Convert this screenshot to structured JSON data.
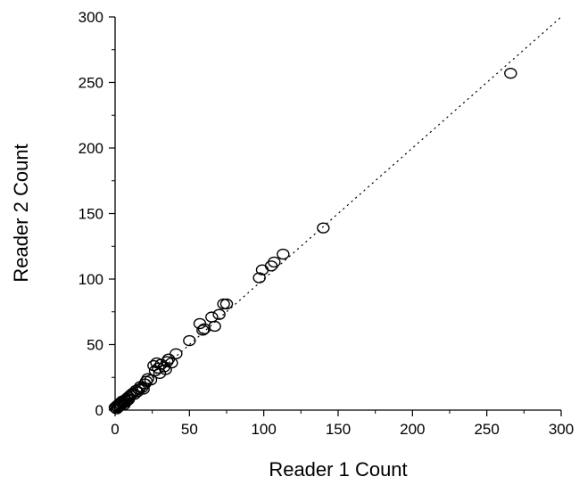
{
  "chart_data": {
    "type": "scatter",
    "xlabel": "Reader 1 Count",
    "ylabel": "Reader 2 Count",
    "xlim": [
      0,
      300
    ],
    "ylim": [
      0,
      300
    ],
    "major_ticks": [
      0,
      50,
      100,
      150,
      200,
      250,
      300
    ],
    "minor_ticks": [
      25,
      75,
      125,
      175,
      225,
      275
    ],
    "grid": false,
    "legend": "none",
    "reference_line": {
      "style": "dotted",
      "from": [
        0,
        0
      ],
      "to": [
        300,
        300
      ]
    },
    "marker": "open-circle",
    "series": [
      {
        "x": [
          0,
          1,
          1,
          2,
          2,
          3,
          3,
          4,
          4,
          5,
          5,
          6,
          6,
          7,
          7,
          8,
          8,
          9,
          9,
          10,
          11,
          12,
          13,
          14,
          15,
          16,
          17,
          18,
          19,
          20,
          21,
          22,
          24,
          26,
          27,
          28,
          29,
          30,
          31,
          33,
          34,
          35,
          36,
          38,
          41,
          50,
          57,
          59,
          60,
          65,
          67,
          70,
          73,
          75,
          97,
          99,
          105,
          107,
          113,
          140,
          266
        ],
        "y": [
          2,
          3,
          1,
          4,
          2,
          5,
          3,
          4,
          6,
          5,
          7,
          6,
          4,
          8,
          6,
          7,
          9,
          8,
          10,
          11,
          12,
          13,
          12,
          15,
          14,
          16,
          18,
          17,
          16,
          20,
          22,
          24,
          23,
          34,
          30,
          36,
          32,
          28,
          35,
          33,
          31,
          37,
          39,
          36,
          43,
          53,
          66,
          61,
          62,
          71,
          64,
          73,
          81,
          81,
          101,
          107,
          110,
          113,
          119,
          139,
          257
        ]
      }
    ]
  }
}
